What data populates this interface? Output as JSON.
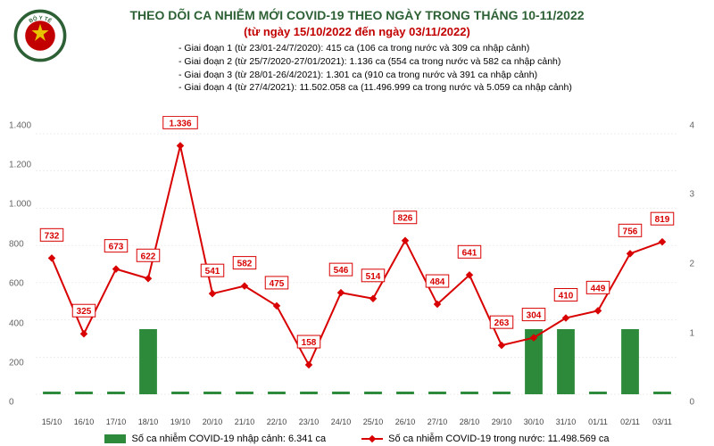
{
  "title_line1": "THEO DÕI CA NHIỄM MỚI COVID-19 THEO NGÀY TRONG THÁNG 10-11/2022",
  "title_line2": "(từ ngày 15/10/2022 đến ngày 03/11/2022)",
  "phases": [
    "- Giai đoạn 1 (từ 23/01-24/7/2020): 415 ca (106 ca trong nước và 309 ca nhập cảnh)",
    "- Giai đoạn 2 (từ 25/7/2020-27/01/2021): 1.136 ca (554 ca trong nước và 582 ca nhập cảnh)",
    "- Giai đoạn 3 (từ 28/01-26/4/2021): 1.301 ca (910 ca trong nước và 391 ca nhập cảnh)",
    "- Giai đoạn 4 (từ 27/4/2021): 11.502.058 ca (11.496.999 ca trong nước và 5.059 ca nhập cảnh)"
  ],
  "chart": {
    "dates": [
      "15/10",
      "16/10",
      "17/10",
      "18/10",
      "19/10",
      "20/10",
      "21/10",
      "22/10",
      "23/10",
      "24/10",
      "25/10",
      "26/10",
      "27/10",
      "28/10",
      "29/10",
      "30/10",
      "31/10",
      "01/11",
      "02/11",
      "03/11"
    ],
    "line_values": [
      732,
      325,
      673,
      622,
      1336,
      541,
      582,
      475,
      158,
      546,
      514,
      826,
      484,
      641,
      263,
      304,
      410,
      449,
      756,
      819
    ],
    "bar_values": [
      0,
      0,
      0,
      1,
      0,
      0,
      0,
      0,
      0,
      0,
      0,
      0,
      0,
      0,
      0,
      1,
      1,
      0,
      1,
      0
    ],
    "line_color": "#d80000",
    "bar_color": "#2d8a3a",
    "y_left_max": 1400,
    "y_left_step": 200,
    "y_right_max": 4,
    "y_right_step": 1,
    "grid_color": "#dddddd",
    "label_border_color": "#d80000",
    "label_text_color": "#d80000",
    "title_color": "#2d6135",
    "subtitle_color": "#c20000",
    "bar_width": 0.55
  },
  "legend": {
    "bar_label": "Số ca nhiễm COVID-19 nhập cảnh: 6.341 ca",
    "line_label": "Số ca nhiễm COVID-19 trong nước: 11.498.569 ca"
  },
  "logo": {
    "ring_color": "#2d6135",
    "star_color": "#e8c400",
    "center_color": "#c20000",
    "text": "BỘ Y TẾ"
  }
}
